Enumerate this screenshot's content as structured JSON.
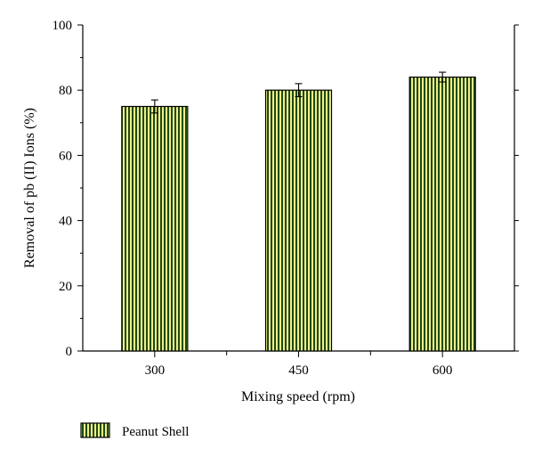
{
  "chart_data": {
    "type": "bar",
    "categories": [
      "300",
      "450",
      "600"
    ],
    "series": [
      {
        "name": "Peanut Shell",
        "values": [
          75,
          80,
          84
        ],
        "errors": [
          2,
          2,
          1.5
        ]
      }
    ],
    "xlabel": "Mixing speed (rpm)",
    "ylabel": "Removal of pb (II) Ions (%)",
    "ylim": [
      0,
      100
    ],
    "yticks": [
      "0",
      "20",
      "40",
      "60",
      "80",
      "100"
    ],
    "grid": false,
    "legend_position": "bottom-left",
    "colors": {
      "bar_stripe_dark": "#1f4a12",
      "bar_stripe_light": "#f2ee8c"
    }
  }
}
